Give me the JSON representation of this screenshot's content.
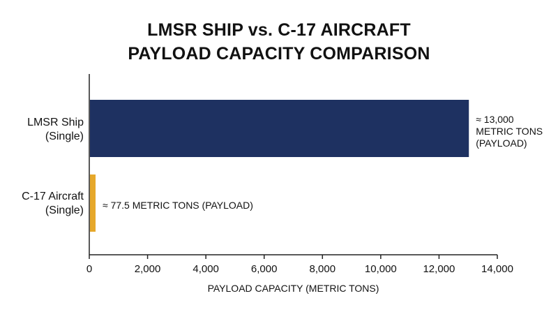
{
  "chart_data": {
    "type": "bar",
    "orientation": "horizontal",
    "title_lines": [
      "LMSR SHIP vs. C-17 AIRCRAFT",
      "PAYLOAD CAPACITY COMPARISON"
    ],
    "categories": [
      {
        "lines": [
          "LMSR Ship",
          "(Single)"
        ]
      },
      {
        "lines": [
          "C-17 Aircraft",
          "(Single)"
        ]
      }
    ],
    "values": [
      13000,
      77.5
    ],
    "bar_labels": [
      [
        "≈ 13,000",
        "METRIC TONS",
        "(PAYLOAD)"
      ],
      [
        "≈ 77.5 METRIC TONS (PAYLOAD)"
      ]
    ],
    "colors": [
      "#1e3161",
      "#e6a82b"
    ],
    "xlabel": "PAYLOAD CAPACITY (METRIC TONS)",
    "xlim": [
      0,
      14000
    ],
    "xticks": [
      "0",
      "2,000",
      "4,000",
      "6,000",
      "8,000",
      "10,000",
      "12,000",
      "14,000"
    ],
    "xtick_values": [
      0,
      2000,
      4000,
      6000,
      8000,
      10000,
      12000,
      14000
    ],
    "grid": false,
    "legend": "none"
  }
}
